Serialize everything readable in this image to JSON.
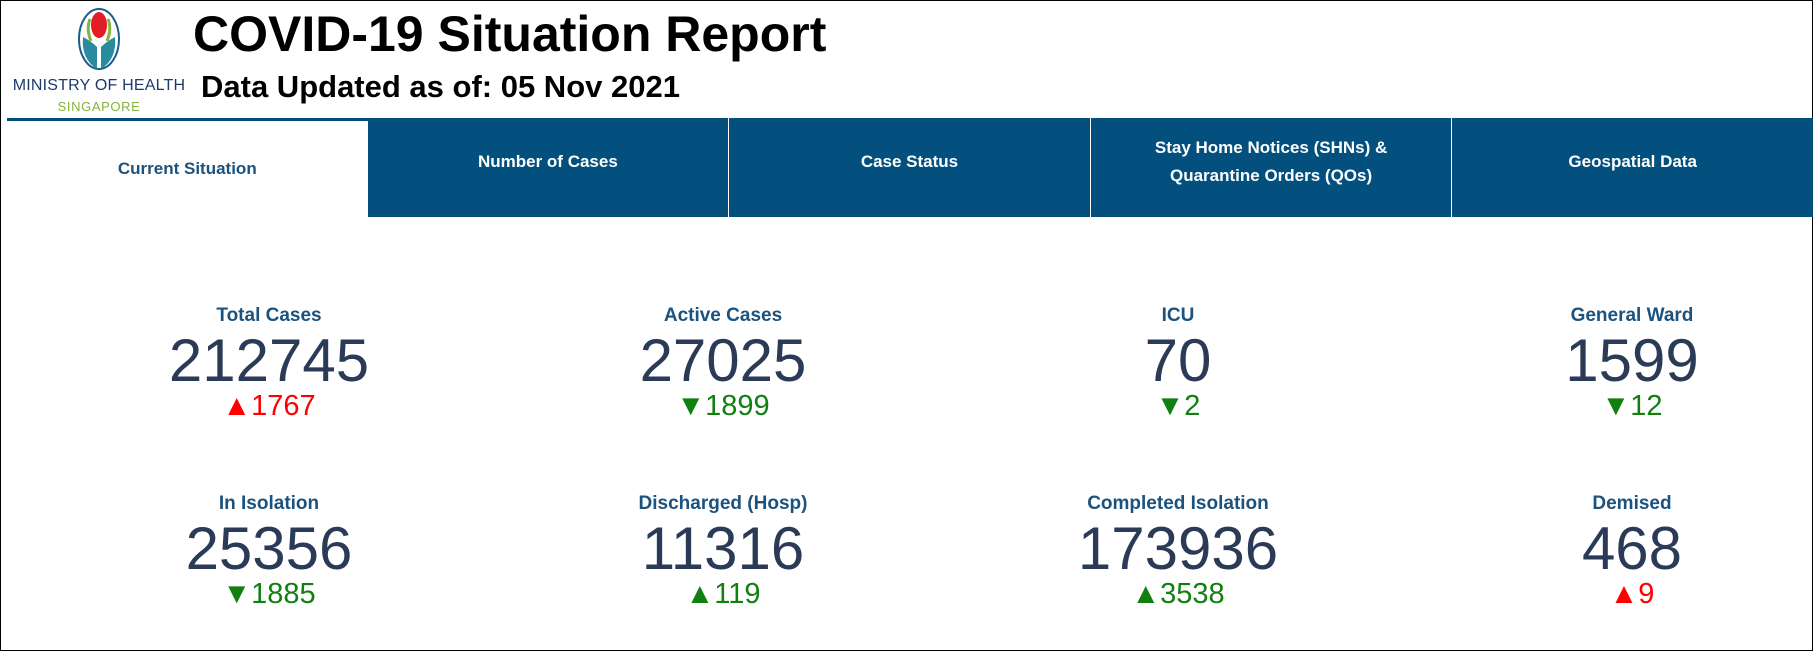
{
  "header": {
    "logo_text": "MINISTRY OF HEALTH",
    "logo_subtext": "SINGAPORE",
    "title": "COVID-19 Situation Report",
    "subtitle": "Data Updated as of: 05 Nov 2021"
  },
  "colors": {
    "tab_bg": "#03507f",
    "label": "#1b527e",
    "value": "#2b3a57",
    "increase_bad": "#ff0000",
    "change_good": "#118011"
  },
  "tabs": [
    {
      "label": "Current Situation",
      "active": true
    },
    {
      "label": "Number of Cases",
      "active": false
    },
    {
      "label": "Case Status",
      "active": false
    },
    {
      "label": "Stay Home Notices (SHNs) & Quarantine Orders (QOs)",
      "active": false
    },
    {
      "label": "Geospatial Data",
      "active": false
    }
  ],
  "stats": [
    {
      "label": "Total Cases",
      "value": "212745",
      "delta": "▲1767",
      "trend": "up",
      "delta_color": "red"
    },
    {
      "label": "Active Cases",
      "value": "27025",
      "delta": "▼1899",
      "trend": "down",
      "delta_color": "green"
    },
    {
      "label": "ICU",
      "value": "70",
      "delta": "▼2",
      "trend": "down",
      "delta_color": "green"
    },
    {
      "label": "General Ward",
      "value": "1599",
      "delta": "▼12",
      "trend": "down",
      "delta_color": "green"
    },
    {
      "label": "In Isolation",
      "value": "25356",
      "delta": "▼1885",
      "trend": "down",
      "delta_color": "green"
    },
    {
      "label": "Discharged (Hosp)",
      "value": "11316",
      "delta": "▲119",
      "trend": "up",
      "delta_color": "green"
    },
    {
      "label": "Completed Isolation",
      "value": "173936",
      "delta": "▲3538",
      "trend": "up",
      "delta_color": "green"
    },
    {
      "label": "Demised",
      "value": "468",
      "delta": "▲9",
      "trend": "up",
      "delta_color": "red"
    }
  ]
}
